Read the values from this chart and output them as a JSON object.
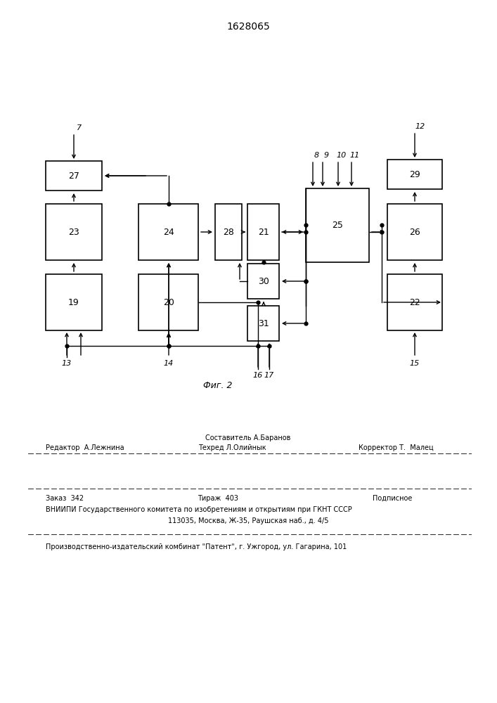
{
  "title": "1628065",
  "fig_label": "Фиг. 2",
  "bg_color": "#ffffff",
  "line_color": "#000000",
  "footer_line0_center": "Составитель А.Баранов",
  "footer_line1_left": "Редактор  А.Лежнина",
  "footer_line1_center": "Техред Л.Олийнык",
  "footer_line1_right": "Корректор Т.  Малец",
  "footer_line2_left": "Заказ  342",
  "footer_line2_center": "Тираж  403",
  "footer_line2_right": "Подписное",
  "footer_line3": "ВНИИПИ Государственного комитета по изобретениям и открытиям при ГКНТ СССР",
  "footer_line4": "113035, Москва, Ж-35, Раушская наб., д. 4/5",
  "footer_line5": "Производственно-издательский комбинат \"Патент\", г. Ужгород, ул. Гагарина, 101"
}
